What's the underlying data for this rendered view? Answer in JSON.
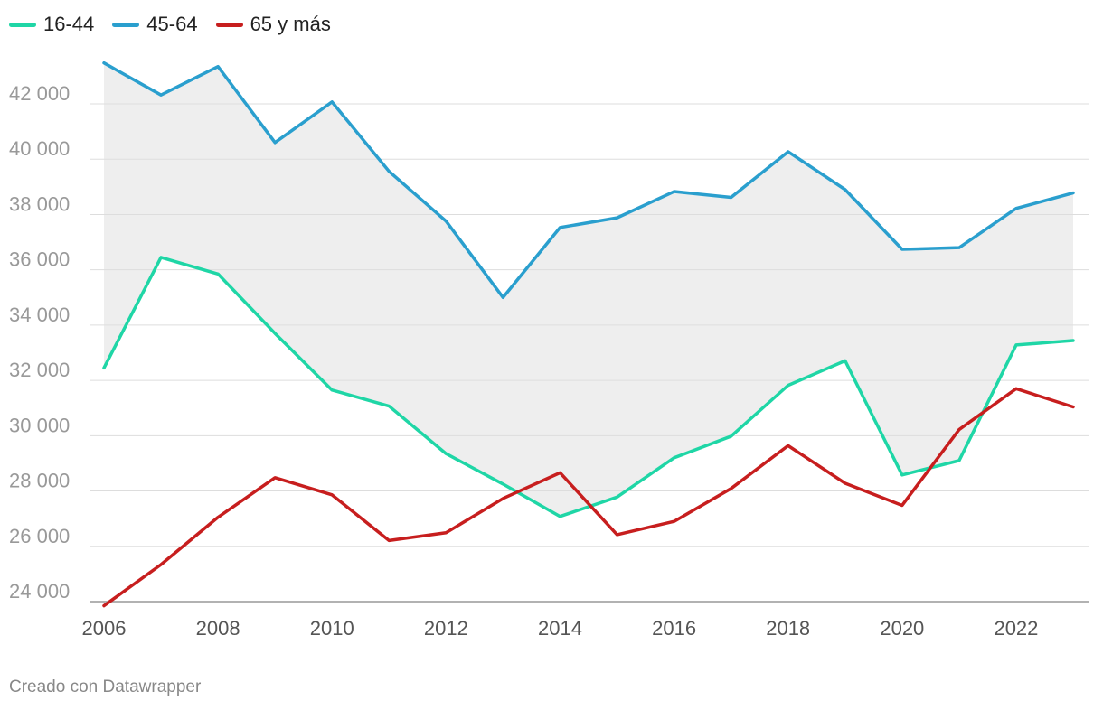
{
  "chart_data": {
    "type": "line",
    "x": [
      2006,
      2007,
      2008,
      2009,
      2010,
      2011,
      2012,
      2013,
      2014,
      2015,
      2016,
      2017,
      2018,
      2019,
      2020,
      2021,
      2022,
      2023
    ],
    "x_ticks": [
      "2006",
      "2008",
      "2010",
      "2012",
      "2014",
      "2016",
      "2018",
      "2020",
      "2022"
    ],
    "y_ticks": [
      "24 000",
      "26 000",
      "28 000",
      "30 000",
      "32 000",
      "34 000",
      "36 000",
      "38 000",
      "40 000",
      "42 000"
    ],
    "ylim": [
      24000,
      44000
    ],
    "grid": true,
    "legend_position": "top-left",
    "range_fill": {
      "between": [
        "16-44",
        "45-64"
      ],
      "color": "#eeeeee"
    },
    "series": [
      {
        "name": "16-44",
        "color": "#1fd6a6",
        "values": [
          32450,
          36450,
          35850,
          33700,
          31650,
          31070,
          29350,
          28250,
          27080,
          27780,
          29200,
          29980,
          31820,
          32710,
          28580,
          29100,
          33280,
          33440
        ]
      },
      {
        "name": "45-64",
        "color": "#2a9fce",
        "values": [
          43480,
          42320,
          43350,
          40600,
          42070,
          39560,
          37760,
          35000,
          37530,
          37880,
          38830,
          38620,
          40270,
          38900,
          36740,
          36800,
          38220,
          38780
        ]
      },
      {
        "name": "65 y más",
        "color": "#c71e1e",
        "values": [
          23850,
          25340,
          27050,
          28480,
          27860,
          26210,
          26490,
          27730,
          28660,
          26420,
          26900,
          28090,
          29640,
          28280,
          27480,
          30220,
          31700,
          31040
        ]
      }
    ]
  },
  "footer": {
    "credit": "Creado con Datawrapper"
  }
}
